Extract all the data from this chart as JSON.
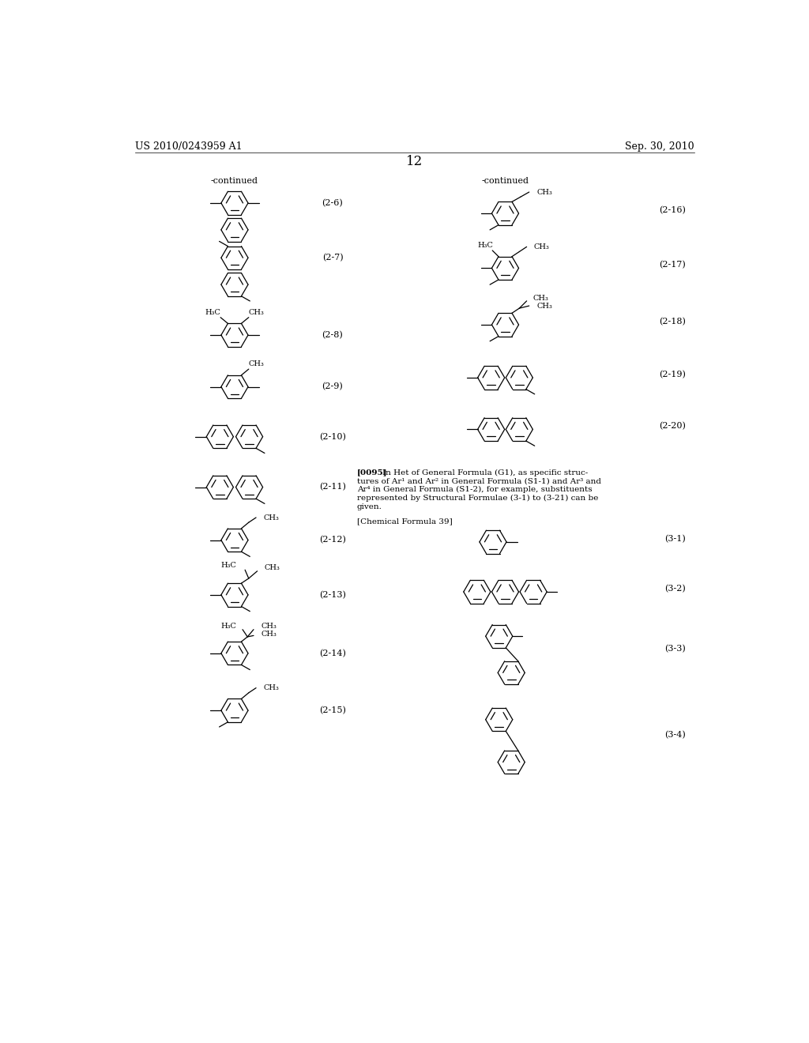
{
  "title_left": "US 2010/0243959 A1",
  "title_right": "Sep. 30, 2010",
  "page_number": "12",
  "bg_color": "#ffffff",
  "text_color": "#000000"
}
